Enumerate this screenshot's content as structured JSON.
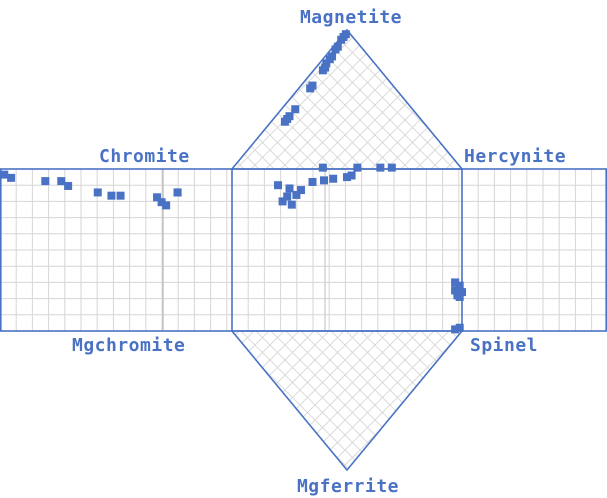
{
  "chart_data": {
    "type": "scatter",
    "title": "",
    "vertex_labels": {
      "magnetite": "Magnetite",
      "chromite": "Chromite",
      "hercynite": "Hercynite",
      "mgchromite": "Mgchromite",
      "spinel": "Spinel",
      "mgferrite": "Mgferrite"
    },
    "grid": true,
    "color": "#4a72c4",
    "grid_color": "#d6d6d6",
    "series": [
      {
        "panel": "upper-triangle",
        "axes": [
          "Magnetite",
          "Chromite",
          "Hercynite"
        ],
        "points": [
          [
            0.97,
            0.02,
            0.01
          ],
          [
            0.95,
            0.04,
            0.01
          ],
          [
            0.93,
            0.06,
            0.01
          ],
          [
            0.88,
            0.1,
            0.02
          ],
          [
            0.86,
            0.12,
            0.02
          ],
          [
            0.81,
            0.16,
            0.03
          ],
          [
            0.79,
            0.18,
            0.03
          ],
          [
            0.76,
            0.21,
            0.03
          ],
          [
            0.73,
            0.23,
            0.04
          ],
          [
            0.71,
            0.25,
            0.04
          ],
          [
            0.6,
            0.35,
            0.05
          ],
          [
            0.58,
            0.37,
            0.05
          ],
          [
            0.43,
            0.51,
            0.06
          ],
          [
            0.38,
            0.56,
            0.06
          ],
          [
            0.36,
            0.58,
            0.06
          ],
          [
            0.34,
            0.6,
            0.06
          ],
          [
            0.01,
            0.6,
            0.39
          ],
          [
            0.01,
            0.45,
            0.54
          ],
          [
            0.01,
            0.35,
            0.64
          ],
          [
            0.01,
            0.3,
            0.69
          ]
        ]
      },
      {
        "panel": "middle-square",
        "axes": [
          "Chromite-Hercynite",
          "Chromite-Mgchromite"
        ],
        "points": [
          [
            0.2,
            0.1
          ],
          [
            0.25,
            0.12
          ],
          [
            0.3,
            0.13
          ],
          [
            0.22,
            0.2
          ],
          [
            0.26,
            0.22
          ],
          [
            0.24,
            0.17
          ],
          [
            0.28,
            0.16
          ],
          [
            0.35,
            0.08
          ],
          [
            0.4,
            0.07
          ],
          [
            0.44,
            0.06
          ],
          [
            0.5,
            0.05
          ],
          [
            0.52,
            0.04
          ],
          [
            0.97,
            0.75
          ],
          [
            0.98,
            0.78
          ],
          [
            0.99,
            0.72
          ],
          [
            0.97,
            0.7
          ],
          [
            0.99,
            0.79
          ],
          [
            1.0,
            0.76
          ],
          [
            0.99,
            0.98
          ],
          [
            0.97,
            0.99
          ]
        ]
      },
      {
        "panel": "left-square",
        "axes": [
          "Chromite-Mgchromite"
        ],
        "points": [
          [
            0.01,
            0.01
          ],
          [
            0.04,
            0.03
          ],
          [
            0.19,
            0.05
          ],
          [
            0.26,
            0.05
          ],
          [
            0.29,
            0.08
          ],
          [
            0.42,
            0.12
          ],
          [
            0.48,
            0.14
          ],
          [
            0.52,
            0.14
          ],
          [
            0.68,
            0.15
          ],
          [
            0.7,
            0.18
          ],
          [
            0.72,
            0.2
          ],
          [
            0.77,
            0.12
          ],
          [
            0.77,
            0.12
          ]
        ]
      }
    ]
  }
}
